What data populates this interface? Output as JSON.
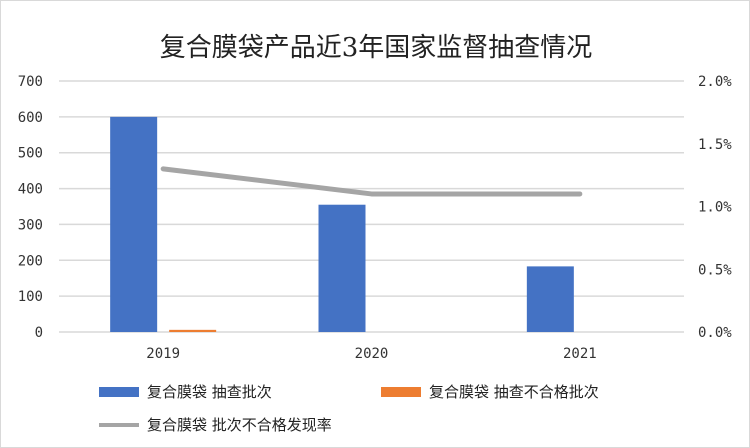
{
  "chart_data": {
    "type": "bar",
    "title": "复合膜袋产品近3年国家监督抽查情况",
    "categories": [
      "2019",
      "2020",
      "2021"
    ],
    "series": [
      {
        "name": "复合膜袋  抽查批次",
        "kind": "bar",
        "axis": "left",
        "color": "#4472C4",
        "values": [
          600,
          355,
          183
        ]
      },
      {
        "name": "复合膜袋  抽查不合格批次",
        "kind": "bar",
        "axis": "left",
        "color": "#ED7D31",
        "values": [
          6,
          0,
          0
        ]
      },
      {
        "name": "复合膜袋  批次不合格发现率",
        "kind": "line",
        "axis": "right",
        "color": "#A5A5A5",
        "values": [
          1.3,
          1.1,
          1.1
        ]
      }
    ],
    "ylim": [
      0,
      700
    ],
    "y_ticks": [
      "0",
      "100",
      "200",
      "300",
      "400",
      "500",
      "600",
      "700"
    ],
    "y2lim": [
      0,
      2.0
    ],
    "y2_ticks": [
      "0.0%",
      "0.5%",
      "1.0%",
      "1.5%",
      "2.0%"
    ],
    "grid": true,
    "legend_position": "bottom"
  }
}
